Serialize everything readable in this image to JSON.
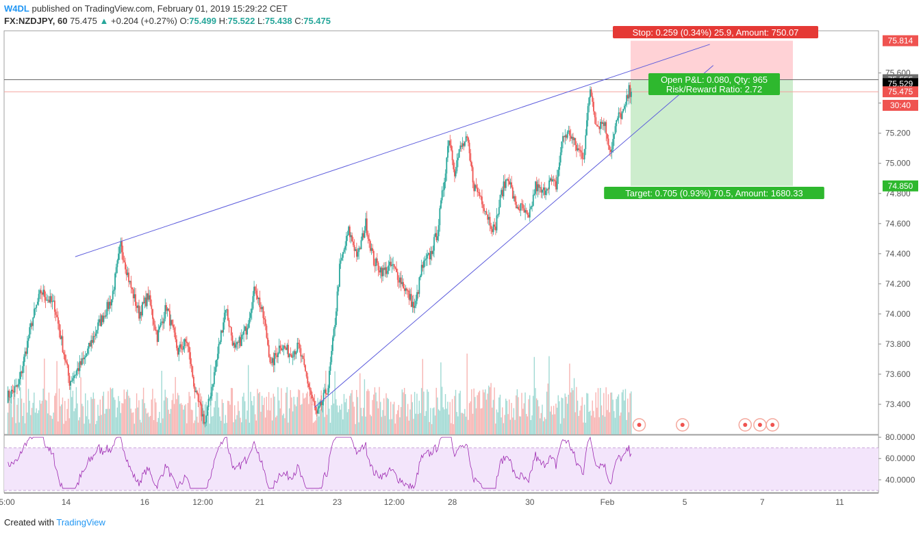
{
  "header": {
    "publisher": "W4DL",
    "published_text": "published on TradingView.com, February 01, 2019 15:29:22 CET",
    "symbol": "FX:NZDJPY, 60",
    "last": "75.475",
    "change_arrow": "▲",
    "change": "+0.204 (+0.27%)",
    "o_label": "O:",
    "o": "75.499",
    "h_label": "H:",
    "h": "75.522",
    "l_label": "L:",
    "l": "75.438",
    "c_label": "C:",
    "c": "75.475"
  },
  "footer": {
    "created_with": "Created with",
    "brand": "TradingView"
  },
  "colors": {
    "up": "#26a69a",
    "down": "#ef5350",
    "trendline": "#5b5bdc",
    "rsi": "#9c27b0",
    "rsi_band": "#f3e5fb",
    "stop_zone": "#ffcdd2",
    "target_zone": "#c8ebc8"
  },
  "position": {
    "stop_label": "Stop: 0.259 (0.34%) 25.9, Amount: 750.07",
    "open_label": "Open P&L: 0.080, Qty: 965",
    "rr_label": "Risk/Reward Ratio: 2.72",
    "target_label": "Target: 0.705 (0.93%) 70.5, Amount: 1680.33",
    "entry": 75.555,
    "stop": 75.814,
    "target": 74.85
  },
  "price_axis": {
    "ticks": [
      "75.600",
      "75.400",
      "75.200",
      "75.000",
      "74.800",
      "74.600",
      "74.400",
      "74.200",
      "74.000",
      "73.800",
      "73.600",
      "73.400"
    ],
    "tick_values": [
      75.6,
      75.4,
      75.2,
      75.0,
      74.8,
      74.6,
      74.4,
      74.2,
      74.0,
      73.8,
      73.6,
      73.4
    ],
    "labels": [
      {
        "text": "75.814",
        "value": 75.814,
        "bg": "#ef5350",
        "fg": "#ffffff"
      },
      {
        "text": "75.555",
        "value": 75.555,
        "bg": "#6e6e6e",
        "fg": "#ffffff"
      },
      {
        "text": "75.529",
        "value": 75.529,
        "bg": "#000000",
        "fg": "#ffffff"
      },
      {
        "text": "75.475",
        "value": 75.475,
        "bg": "#ef5350",
        "fg": "#ffffff"
      },
      {
        "text": "30:40",
        "value": 75.385,
        "bg": "#ef5350",
        "fg": "#ffffff"
      },
      {
        "text": "74.850",
        "value": 74.85,
        "bg": "#2eb82e",
        "fg": "#ffffff"
      }
    ]
  },
  "rsi_axis": {
    "ticks": [
      "80.0000",
      "60.0000",
      "40.0000"
    ],
    "tick_values": [
      80,
      60,
      40
    ],
    "band": [
      30,
      70
    ]
  },
  "time_axis": {
    "ticks": [
      {
        "label": "5:00",
        "bar": 0
      },
      {
        "label": "14",
        "bar": 52
      },
      {
        "label": "16",
        "bar": 121
      },
      {
        "label": "12:00",
        "bar": 172
      },
      {
        "label": "21",
        "bar": 222
      },
      {
        "label": "23",
        "bar": 290
      },
      {
        "label": "12:00",
        "bar": 340
      },
      {
        "label": "28",
        "bar": 391
      },
      {
        "label": "30",
        "bar": 459
      },
      {
        "label": "Feb",
        "bar": 527
      },
      {
        "label": "5",
        "bar": 595
      },
      {
        "label": "7",
        "bar": 663
      },
      {
        "label": "11",
        "bar": 731
      }
    ]
  },
  "chart_data": {
    "type": "candlestick",
    "symbol": "FX:NZDJPY",
    "interval": "60",
    "ylim": [
      73.2,
      75.88
    ],
    "rsi_ylim": [
      28,
      82
    ],
    "anchors": [
      [
        0,
        73.45
      ],
      [
        10,
        73.52
      ],
      [
        22,
        73.95
      ],
      [
        30,
        74.15
      ],
      [
        42,
        74.05
      ],
      [
        55,
        73.55
      ],
      [
        68,
        73.7
      ],
      [
        80,
        73.92
      ],
      [
        92,
        74.1
      ],
      [
        100,
        74.46
      ],
      [
        108,
        74.2
      ],
      [
        116,
        74.0
      ],
      [
        124,
        74.12
      ],
      [
        132,
        73.85
      ],
      [
        140,
        74.05
      ],
      [
        150,
        73.75
      ],
      [
        158,
        73.82
      ],
      [
        166,
        73.45
      ],
      [
        174,
        73.28
      ],
      [
        182,
        73.6
      ],
      [
        192,
        74.05
      ],
      [
        200,
        73.75
      ],
      [
        210,
        73.9
      ],
      [
        218,
        74.18
      ],
      [
        226,
        73.95
      ],
      [
        232,
        73.65
      ],
      [
        240,
        73.8
      ],
      [
        248,
        73.74
      ],
      [
        256,
        73.78
      ],
      [
        264,
        73.55
      ],
      [
        272,
        73.32
      ],
      [
        282,
        73.52
      ],
      [
        288,
        73.95
      ],
      [
        292,
        74.3
      ],
      [
        300,
        74.55
      ],
      [
        308,
        74.38
      ],
      [
        315,
        74.6
      ],
      [
        322,
        74.35
      ],
      [
        330,
        74.28
      ],
      [
        338,
        74.32
      ],
      [
        346,
        74.22
      ],
      [
        354,
        74.1
      ],
      [
        358,
        74.03
      ],
      [
        364,
        74.3
      ],
      [
        372,
        74.4
      ],
      [
        378,
        74.55
      ],
      [
        384,
        74.9
      ],
      [
        388,
        75.18
      ],
      [
        393,
        74.95
      ],
      [
        398,
        75.1
      ],
      [
        404,
        75.15
      ],
      [
        410,
        74.85
      ],
      [
        416,
        74.78
      ],
      [
        422,
        74.65
      ],
      [
        428,
        74.55
      ],
      [
        434,
        74.8
      ],
      [
        440,
        74.92
      ],
      [
        446,
        74.72
      ],
      [
        452,
        74.7
      ],
      [
        458,
        74.62
      ],
      [
        464,
        74.85
      ],
      [
        470,
        74.8
      ],
      [
        476,
        74.88
      ],
      [
        482,
        74.85
      ],
      [
        488,
        75.18
      ],
      [
        494,
        75.2
      ],
      [
        500,
        75.1
      ],
      [
        506,
        75.05
      ],
      [
        512,
        75.5
      ],
      [
        518,
        75.25
      ],
      [
        524,
        75.28
      ],
      [
        530,
        75.08
      ],
      [
        536,
        75.3
      ],
      [
        542,
        75.35
      ],
      [
        546,
        75.48
      ],
      [
        548,
        75.475
      ]
    ],
    "last_bar": 548,
    "visible_until": "Feb 11 (future space)",
    "position_tool": {
      "entry": 75.555,
      "stop": 75.814,
      "target": 74.85,
      "qty": 965,
      "risk_reward": 2.72
    },
    "trendlines": [
      {
        "from": {
          "bar": 60,
          "price": 74.38
        },
        "to": {
          "bar": 617,
          "price": 75.79
        }
      },
      {
        "from": {
          "bar": 270,
          "price": 73.38
        },
        "to": {
          "bar": 620,
          "price": 75.65
        }
      }
    ],
    "indicators": [
      {
        "name": "RSI",
        "band": [
          30,
          70
        ],
        "ticks": [
          80,
          60,
          40
        ]
      }
    ],
    "event_markers_bars": [
      555,
      593,
      648,
      661,
      672
    ]
  }
}
